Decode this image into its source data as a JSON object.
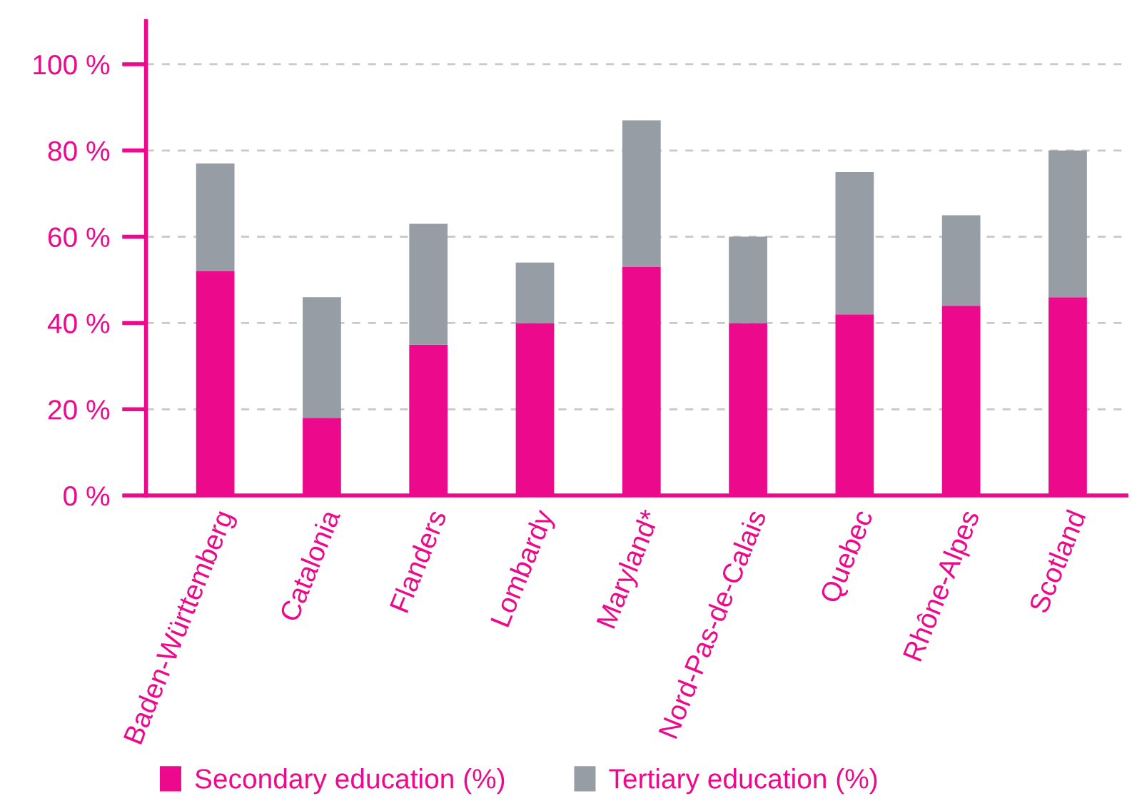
{
  "chart_data": {
    "type": "bar",
    "stacked": true,
    "categories": [
      "Baden-Württemberg",
      "Catalonia",
      "Flanders",
      "Lombardy",
      "Maryland*",
      "Nord-Pas-de-Calais",
      "Quebec",
      "Rhône-Alpes",
      "Scotland"
    ],
    "series": [
      {
        "name": "Secondary education (%)",
        "color": "#ec098c",
        "values": [
          52,
          18,
          35,
          40,
          53,
          40,
          42,
          44,
          46
        ]
      },
      {
        "name": "Tertiary education (%)",
        "color": "#979da4",
        "values": [
          25,
          28,
          28,
          14,
          34,
          20,
          33,
          21,
          34
        ]
      }
    ],
    "ylim": [
      0,
      110
    ],
    "yticks": [
      {
        "value": 0,
        "label": "0 %"
      },
      {
        "value": 20,
        "label": "20 %"
      },
      {
        "value": 40,
        "label": "40 %"
      },
      {
        "value": 60,
        "label": "60 %"
      },
      {
        "value": 80,
        "label": "80 %"
      },
      {
        "value": 100,
        "label": "100 %"
      }
    ],
    "grid": "y",
    "legend": "bottom left"
  }
}
